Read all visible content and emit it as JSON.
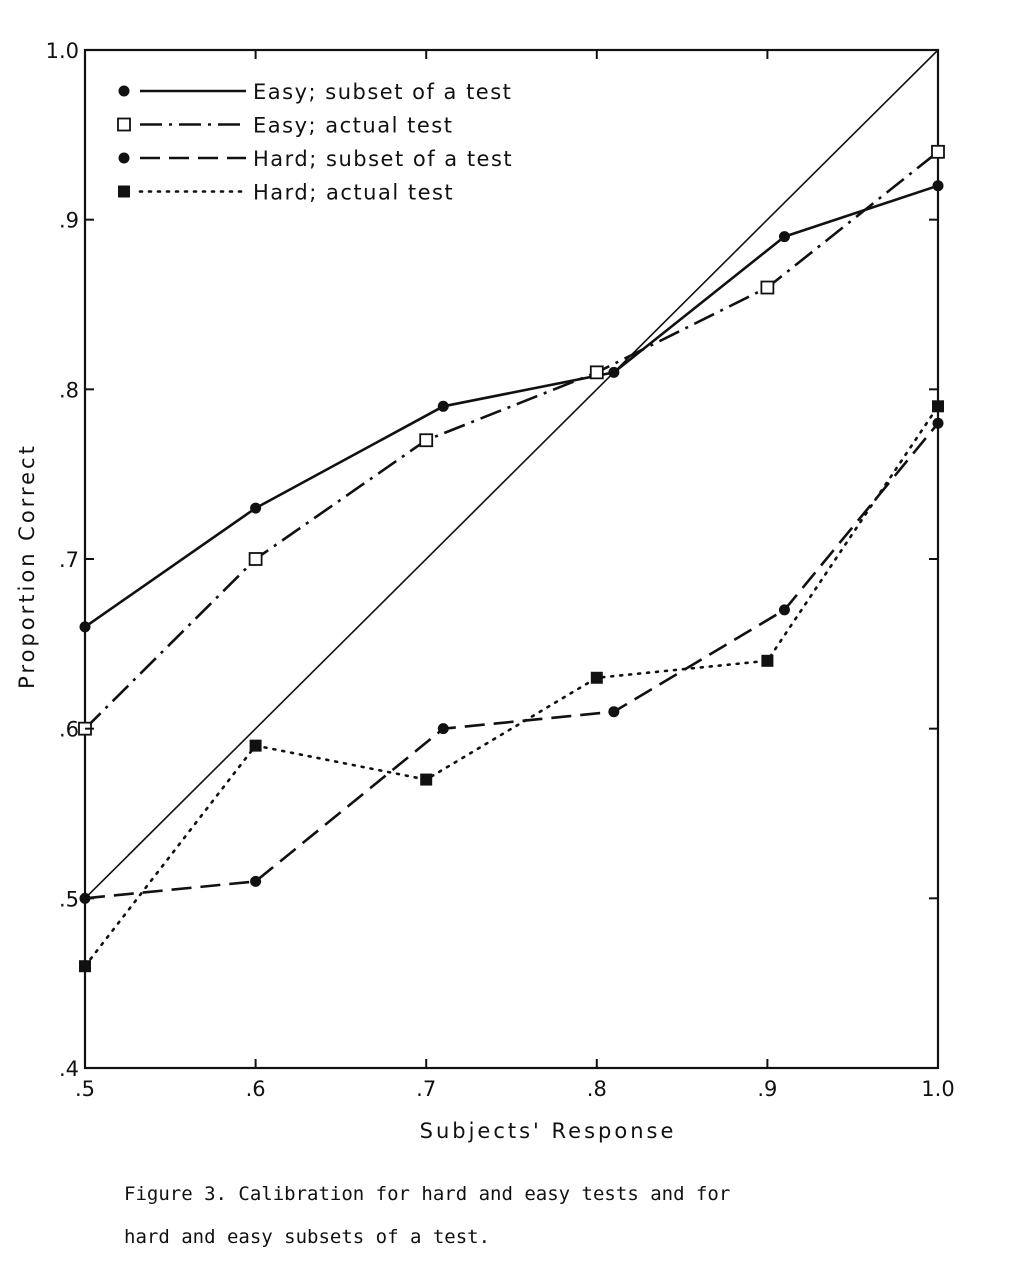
{
  "chart_data": {
    "type": "line",
    "xlabel": "Subjects' Response",
    "ylabel": "Proportion Correct",
    "xlim": [
      0.5,
      1.0
    ],
    "ylim": [
      0.4,
      1.0
    ],
    "x_ticks": [
      0.5,
      0.6,
      0.7,
      0.8,
      0.9,
      1.0
    ],
    "x_tick_labels": [
      ".5",
      ".6",
      ".7",
      ".8",
      ".9",
      "1.0"
    ],
    "y_ticks": [
      0.4,
      0.5,
      0.6,
      0.7,
      0.8,
      0.9,
      1.0
    ],
    "y_tick_labels": [
      ".4",
      ".5",
      ".6",
      ".7",
      ".8",
      ".9",
      "1.0"
    ],
    "grid": false,
    "legend_position": "top-left",
    "reference_line": {
      "x": [
        0.5,
        1.0
      ],
      "y": [
        0.5,
        1.0
      ]
    },
    "series": [
      {
        "name": "Easy; subset of a test",
        "line_style": "solid",
        "marker": "filled-circle",
        "x": [
          0.5,
          0.6,
          0.71,
          0.81,
          0.91,
          1.0
        ],
        "y": [
          0.66,
          0.73,
          0.79,
          0.81,
          0.89,
          0.92
        ]
      },
      {
        "name": "Easy; actual test",
        "line_style": "dash-dot",
        "marker": "open-square",
        "x": [
          0.5,
          0.6,
          0.7,
          0.8,
          0.9,
          1.0
        ],
        "y": [
          0.6,
          0.7,
          0.77,
          0.81,
          0.86,
          0.94
        ]
      },
      {
        "name": "Hard; subset of a test",
        "line_style": "dashed",
        "marker": "filled-circle",
        "x": [
          0.5,
          0.6,
          0.71,
          0.81,
          0.91,
          1.0
        ],
        "y": [
          0.5,
          0.51,
          0.6,
          0.61,
          0.67,
          0.78
        ]
      },
      {
        "name": "Hard; actual test",
        "line_style": "dotted",
        "marker": "filled-square",
        "x": [
          0.5,
          0.6,
          0.7,
          0.8,
          0.9,
          1.0
        ],
        "y": [
          0.46,
          0.59,
          0.57,
          0.63,
          0.64,
          0.79
        ]
      }
    ]
  },
  "caption": {
    "line1": "Figure 3.  Calibration for hard and easy tests and for",
    "line2": "hard and easy subsets of a test."
  }
}
